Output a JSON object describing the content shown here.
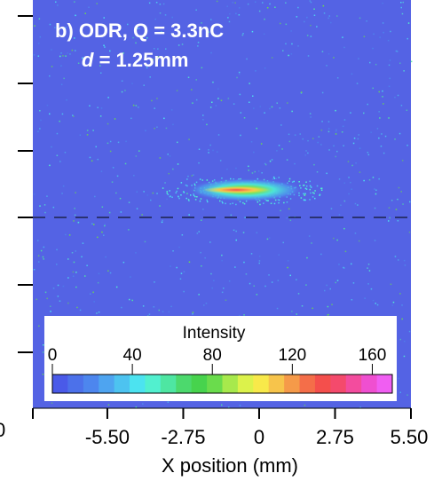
{
  "chart_data": {
    "type": "heatmap",
    "annotation_line1": "b) ODR, Q = 3.3nC",
    "annotation_line2_var": "d",
    "annotation_line2_rest": " = 1.25mm",
    "xlabel": "X position (mm)",
    "xlim": [
      -8.2,
      5.5
    ],
    "x_ticks": [
      "-5.50",
      "-2.75",
      "0",
      "2.75",
      "5.50"
    ],
    "x_tick_values": [
      -5.5,
      -2.75,
      0,
      2.75,
      5.5
    ],
    "left_cut_label": "0",
    "colorbar": {
      "title": "Intensity",
      "range": [
        0,
        170
      ],
      "ticks": [
        "0",
        "40",
        "80",
        "120",
        "160"
      ],
      "tick_values": [
        0,
        40,
        80,
        120,
        160
      ],
      "colors": [
        "#4a5ae8",
        "#4c71ea",
        "#4d86ee",
        "#4ea4f0",
        "#4dc3f0",
        "#4ce3f0",
        "#52f0cf",
        "#4ee6a2",
        "#4cd96d",
        "#47d34d",
        "#6adc4c",
        "#a7e94c",
        "#dcf24b",
        "#f8e94a",
        "#f7c44b",
        "#f59a49",
        "#f46e49",
        "#f44f4c",
        "#f44a6c",
        "#f34c9e",
        "#ef4fd0",
        "#f05ef2"
      ]
    },
    "background_color": "#5463e4",
    "beam": {
      "center_x": -0.5,
      "width_mm": 4.2,
      "peak_intensity": 160
    },
    "dashed_line": true
  }
}
